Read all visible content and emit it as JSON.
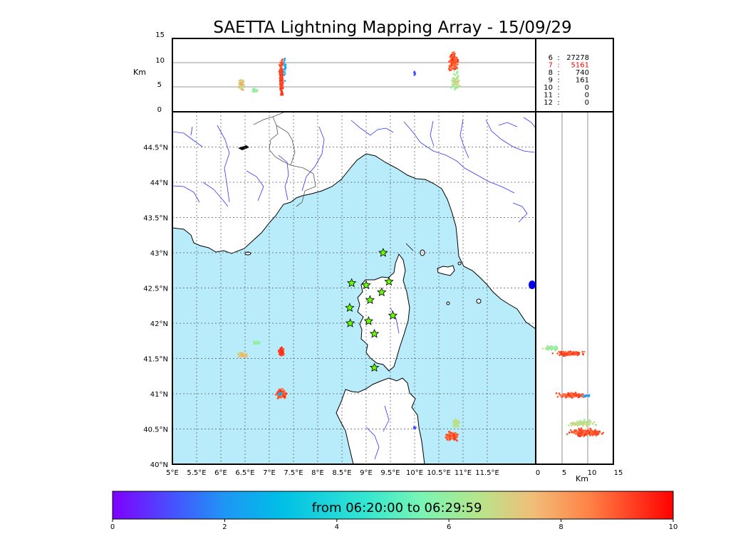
{
  "title": "SAETTA Lightning Mapping Array - 15/09/29",
  "colorbar": {
    "label": "from 06:20:00 to 06:29:59",
    "ticks": [
      "0",
      "2",
      "4",
      "6",
      "8",
      "10"
    ],
    "range": [
      0,
      10
    ]
  },
  "stats": [
    {
      "station": "6",
      "sep": ":",
      "count": "27278",
      "highlight": false
    },
    {
      "station": "7",
      "sep": ":",
      "count": "5161",
      "highlight": true
    },
    {
      "station": "8",
      "sep": ":",
      "count": "740",
      "highlight": false
    },
    {
      "station": "9",
      "sep": ":",
      "count": "161",
      "highlight": false
    },
    {
      "station": "10",
      "sep": ":",
      "count": "0",
      "highlight": false
    },
    {
      "station": "11",
      "sep": ":",
      "count": "0",
      "highlight": false
    },
    {
      "station": "12",
      "sep": ":",
      "count": "0",
      "highlight": false
    }
  ],
  "colors": {
    "sea": "#b8ecfb",
    "river": "#3333ff",
    "border": "#555555",
    "station": "#66ff00",
    "highlight": "#ff0000"
  },
  "chart_data": [
    {
      "type": "scatter",
      "name": "plan-view",
      "xlim": [
        5.0,
        12.5
      ],
      "ylim": [
        40.0,
        45.0
      ],
      "x_ticks": [
        "5°E",
        "5.5°E",
        "6°E",
        "6.5°E",
        "7°E",
        "7.5°E",
        "8°E",
        "8.5°E",
        "9°E",
        "9.5°E",
        "10°E",
        "10.5°E",
        "11°E",
        "11.5°E"
      ],
      "x_tick_values": [
        5,
        5.5,
        6,
        6.5,
        7,
        7.5,
        8,
        8.5,
        9,
        9.5,
        10,
        10.5,
        11,
        11.5
      ],
      "y_ticks": [
        "40°N",
        "40.5°N",
        "41°N",
        "41.5°N",
        "42°N",
        "42.5°N",
        "43°N",
        "43.5°N",
        "44°N",
        "44.5°N"
      ],
      "y_tick_values": [
        40,
        40.5,
        41,
        41.5,
        42,
        42.5,
        43,
        43.5,
        44,
        44.5
      ],
      "grid": true,
      "stations": [
        {
          "lon": 9.35,
          "lat": 43.0
        },
        {
          "lon": 8.7,
          "lat": 42.57
        },
        {
          "lon": 9.0,
          "lat": 42.54
        },
        {
          "lon": 9.47,
          "lat": 42.59
        },
        {
          "lon": 9.32,
          "lat": 42.44
        },
        {
          "lon": 9.08,
          "lat": 42.33
        },
        {
          "lon": 8.66,
          "lat": 42.22
        },
        {
          "lon": 9.55,
          "lat": 42.11
        },
        {
          "lon": 9.05,
          "lat": 42.03
        },
        {
          "lon": 8.67,
          "lat": 42.0
        },
        {
          "lon": 9.17,
          "lat": 41.85
        },
        {
          "lon": 9.17,
          "lat": 41.37
        }
      ],
      "clusters": [
        {
          "lon": 6.45,
          "lat": 41.55,
          "dlon": 0.12,
          "dlat": 0.04,
          "time": [
            6.5,
            8.0
          ],
          "n": 60
        },
        {
          "lon": 6.75,
          "lat": 41.72,
          "dlon": 0.1,
          "dlat": 0.03,
          "time": [
            5.5,
            6.5
          ],
          "n": 20
        },
        {
          "lon": 7.25,
          "lat": 41.6,
          "dlon": 0.06,
          "dlat": 0.07,
          "time": [
            8.8,
            9.6
          ],
          "n": 80
        },
        {
          "lon": 7.25,
          "lat": 41.0,
          "dlon": 0.13,
          "dlat": 0.08,
          "time": [
            8.5,
            9.6
          ],
          "n": 110
        },
        {
          "lon": 7.22,
          "lat": 41.0,
          "dlon": 0.05,
          "dlat": 0.04,
          "time": [
            2.0,
            3.0
          ],
          "n": 12
        },
        {
          "lon": 10.75,
          "lat": 40.4,
          "dlon": 0.18,
          "dlat": 0.08,
          "time": [
            8.5,
            9.6
          ],
          "n": 110
        },
        {
          "lon": 10.85,
          "lat": 40.58,
          "dlon": 0.1,
          "dlat": 0.08,
          "time": [
            6.0,
            7.5
          ],
          "n": 40
        },
        {
          "lon": 10.0,
          "lat": 40.52,
          "dlon": 0.03,
          "dlat": 0.03,
          "time": [
            1.0,
            1.6
          ],
          "n": 8
        }
      ]
    },
    {
      "type": "scatter",
      "name": "altitude-vs-longitude",
      "xlim": [
        5.0,
        12.5
      ],
      "ylim": [
        0,
        15
      ],
      "ylabel": "Km",
      "y_ticks": [
        "0",
        "5",
        "10",
        "15"
      ],
      "y_tick_values": [
        0,
        5,
        10,
        15
      ],
      "clusters": [
        {
          "lon": 6.42,
          "alt": 5.5,
          "dlon": 0.08,
          "dalt": 1.5,
          "time": [
            6.5,
            8.0
          ],
          "n": 60
        },
        {
          "lon": 6.7,
          "alt": 4.3,
          "dlon": 0.1,
          "dalt": 0.5,
          "time": [
            5.5,
            6.5
          ],
          "n": 25
        },
        {
          "lon": 7.25,
          "alt": 7.0,
          "dlon": 0.05,
          "dalt": 4.2,
          "time": [
            8.8,
            9.6
          ],
          "n": 220
        },
        {
          "lon": 7.32,
          "alt": 9.0,
          "dlon": 0.03,
          "dalt": 3.0,
          "time": [
            2.0,
            3.5
          ],
          "n": 20
        },
        {
          "lon": 10.0,
          "alt": 7.8,
          "dlon": 0.02,
          "dalt": 0.6,
          "time": [
            1.0,
            1.6
          ],
          "n": 10
        },
        {
          "lon": 10.8,
          "alt": 10.3,
          "dlon": 0.12,
          "dalt": 2.4,
          "time": [
            8.5,
            9.6
          ],
          "n": 180
        },
        {
          "lon": 10.85,
          "alt": 6.5,
          "dlon": 0.12,
          "dalt": 3.0,
          "time": [
            5.5,
            7.5
          ],
          "n": 70
        }
      ]
    },
    {
      "type": "scatter",
      "name": "latitude-vs-altitude",
      "xlim": [
        0,
        15
      ],
      "ylim": [
        40.0,
        45.0
      ],
      "xlabel": "Km",
      "x_ticks": [
        "0",
        "5",
        "10",
        "15"
      ],
      "x_tick_values": [
        0,
        5,
        10,
        15
      ],
      "clusters": [
        {
          "alt": 6.5,
          "lat": 41.57,
          "dalt": 3.5,
          "dlat": 0.04,
          "time": [
            8.5,
            9.6
          ],
          "n": 140
        },
        {
          "alt": 3.0,
          "lat": 41.65,
          "dalt": 1.8,
          "dlat": 0.05,
          "time": [
            5.5,
            7.0
          ],
          "n": 40
        },
        {
          "alt": 7.0,
          "lat": 40.98,
          "dalt": 3.5,
          "dlat": 0.05,
          "time": [
            8.5,
            9.6
          ],
          "n": 120
        },
        {
          "alt": 9.5,
          "lat": 40.97,
          "dalt": 1.5,
          "dlat": 0.02,
          "time": [
            1.5,
            3.0
          ],
          "n": 12
        },
        {
          "alt": 9.8,
          "lat": 40.45,
          "dalt": 4.0,
          "dlat": 0.07,
          "time": [
            8.5,
            9.6
          ],
          "n": 200
        },
        {
          "alt": 9.0,
          "lat": 40.58,
          "dalt": 3.5,
          "dlat": 0.06,
          "time": [
            6.0,
            7.5
          ],
          "n": 80
        }
      ]
    }
  ]
}
